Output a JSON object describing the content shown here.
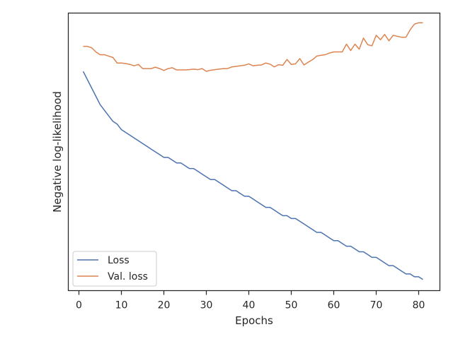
{
  "chart_data": {
    "type": "line",
    "title": "",
    "xlabel": "Epochs",
    "ylabel": "Negative log-likelihood",
    "xlim": [
      -2.5,
      85
    ],
    "ylim": [
      0,
      100
    ],
    "xticks": [
      0,
      10,
      20,
      30,
      40,
      50,
      60,
      70,
      80
    ],
    "xtick_labels": [
      "0",
      "10",
      "20",
      "30",
      "40",
      "50",
      "60",
      "70",
      "80"
    ],
    "y_tick_labels_shown": false,
    "grid": false,
    "legend_position": "lower-left",
    "series": [
      {
        "name": "Loss",
        "color": "#4c72b0",
        "x": [
          1,
          2,
          3,
          4,
          5,
          6,
          7,
          8,
          9,
          10,
          11,
          12,
          13,
          14,
          15,
          16,
          17,
          18,
          19,
          20,
          21,
          22,
          23,
          24,
          25,
          26,
          27,
          28,
          29,
          30,
          31,
          32,
          33,
          34,
          35,
          36,
          37,
          38,
          39,
          40,
          41,
          42,
          43,
          44,
          45,
          46,
          47,
          48,
          49,
          50,
          51,
          52,
          53,
          54,
          55,
          56,
          57,
          58,
          59,
          60,
          61,
          62,
          63,
          64,
          65,
          66,
          67,
          68,
          69,
          70,
          71,
          72,
          73,
          74,
          75,
          76,
          77,
          78,
          79,
          80,
          81
        ],
        "values": [
          79,
          76,
          73,
          70,
          67,
          65,
          63,
          61,
          60,
          58,
          57,
          56,
          55,
          54,
          53,
          52,
          51,
          50,
          49,
          48,
          48,
          47,
          46,
          46,
          45,
          44,
          44,
          43,
          42,
          41,
          40,
          40,
          39,
          38,
          37,
          36,
          36,
          35,
          34,
          34,
          33,
          32,
          31,
          30,
          30,
          29,
          28,
          27,
          27,
          26,
          26,
          25,
          24,
          23,
          22,
          21,
          21,
          20,
          19,
          18,
          18,
          17,
          16,
          16,
          15,
          14,
          14,
          13,
          12,
          12,
          11,
          10,
          9,
          9,
          8,
          7,
          6,
          6,
          5,
          5,
          4
        ]
      },
      {
        "name": "Val. loss",
        "color": "#dd8452",
        "x": [
          1,
          2,
          3,
          4,
          5,
          6,
          7,
          8,
          9,
          10,
          11,
          12,
          13,
          14,
          15,
          16,
          17,
          18,
          19,
          20,
          21,
          22,
          23,
          24,
          25,
          26,
          27,
          28,
          29,
          30,
          31,
          32,
          33,
          34,
          35,
          36,
          37,
          38,
          39,
          40,
          41,
          42,
          43,
          44,
          45,
          46,
          47,
          48,
          49,
          50,
          51,
          52,
          53,
          54,
          55,
          56,
          57,
          58,
          59,
          60,
          61,
          62,
          63,
          64,
          65,
          66,
          67,
          68,
          69,
          70,
          71,
          72,
          73,
          74,
          75,
          76,
          77,
          78,
          79,
          80,
          81
        ],
        "values": [
          88,
          88,
          87.5,
          86,
          85,
          85,
          84.5,
          84,
          82,
          82,
          81.8,
          81.5,
          81,
          81.5,
          80,
          80,
          80,
          80.5,
          80,
          79.3,
          80,
          80.3,
          79.5,
          79.5,
          79.5,
          79.6,
          79.8,
          79.6,
          80,
          79,
          79.4,
          79.6,
          79.8,
          80,
          80,
          80.6,
          80.8,
          81,
          81.2,
          81.7,
          81,
          81.2,
          81.3,
          82,
          81.6,
          80.6,
          81.4,
          81.2,
          83.3,
          81.5,
          81.7,
          83.6,
          81.3,
          82.3,
          83.2,
          84.5,
          84.8,
          85,
          85.6,
          86,
          86,
          86,
          88.8,
          86.5,
          88.8,
          87,
          91,
          88.6,
          88.2,
          92,
          90.4,
          92.3,
          90,
          92,
          91.6,
          91.3,
          91.3,
          94,
          96,
          96.5,
          96.5
        ]
      }
    ]
  }
}
